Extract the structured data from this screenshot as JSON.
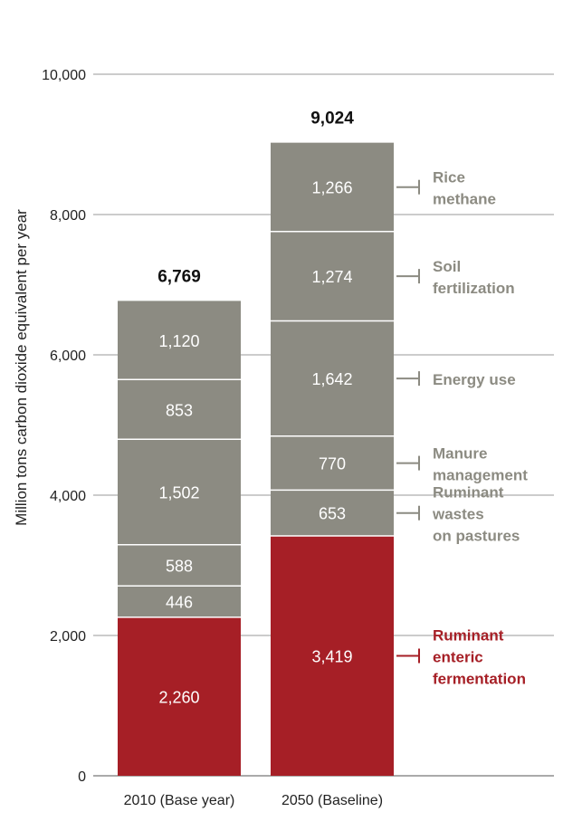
{
  "chart_data": {
    "type": "bar",
    "stacked": true,
    "categories": [
      "2010 (Base year)",
      "2050 (Baseline)"
    ],
    "totals": [
      "6,769",
      "9,024"
    ],
    "ylabel": "Million tons carbon dioxide equivalent per year",
    "ylim": [
      0,
      10000
    ],
    "yticks": [
      0,
      2000,
      4000,
      6000,
      8000,
      10000
    ],
    "ytick_labels": [
      "0",
      "2,000",
      "4,000",
      "6,000",
      "8,000",
      "10,000"
    ],
    "series": [
      {
        "name": "Ruminant enteric fermentation",
        "legend_lines": [
          "Ruminant",
          "enteric",
          "fermentation"
        ],
        "color": "#a61f26",
        "text_color": "#a61f26",
        "values": [
          2260,
          3419
        ],
        "labels": [
          "2,260",
          "3,419"
        ]
      },
      {
        "name": "Ruminant wastes on pastures",
        "legend_lines": [
          "Ruminant",
          "wastes",
          "on pastures"
        ],
        "color": "#8c8b82",
        "text_color": "#8c8b82",
        "values": [
          446,
          653
        ],
        "labels": [
          "446",
          "653"
        ]
      },
      {
        "name": "Manure management",
        "legend_lines": [
          "Manure",
          "management"
        ],
        "color": "#8c8b82",
        "text_color": "#8c8b82",
        "values": [
          588,
          770
        ],
        "labels": [
          "588",
          "770"
        ]
      },
      {
        "name": "Energy use",
        "legend_lines": [
          "Energy use"
        ],
        "color": "#8c8b82",
        "text_color": "#8c8b82",
        "values": [
          1502,
          1642
        ],
        "labels": [
          "1,502",
          "1,642"
        ]
      },
      {
        "name": "Soil fertilization",
        "legend_lines": [
          "Soil",
          "fertilization"
        ],
        "color": "#8c8b82",
        "text_color": "#8c8b82",
        "values": [
          853,
          1274
        ],
        "labels": [
          "853",
          "1,274"
        ]
      },
      {
        "name": "Rice methane",
        "legend_lines": [
          "Rice",
          "methane"
        ],
        "color": "#8c8b82",
        "text_color": "#8c8b82",
        "values": [
          1120,
          1266
        ],
        "labels": [
          "1,120",
          "1,266"
        ]
      }
    ]
  }
}
